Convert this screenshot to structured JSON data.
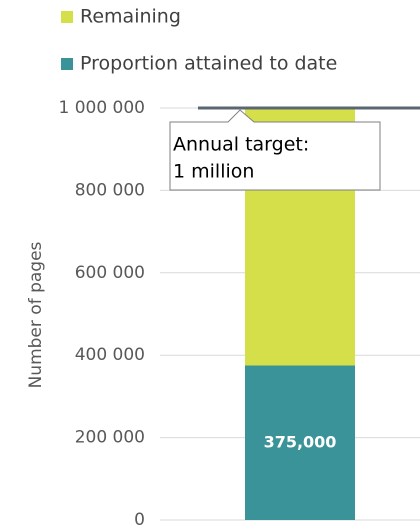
{
  "chart_data": {
    "type": "stacked_bar",
    "categories": [
      null
    ],
    "series": [
      {
        "name": "Proportion attained to date",
        "color": "#3a9399",
        "values": [
          375000
        ],
        "value_labels": [
          "375,000"
        ]
      },
      {
        "name": "Remaining",
        "color": "#d5df4a",
        "values": [
          625000
        ]
      }
    ],
    "y_axis_label": "Number of pages",
    "ylim": [
      0,
      1000000
    ],
    "yticks": [
      0,
      {
        "value": 200000,
        "label": "200 000"
      },
      {
        "value": 400000,
        "label": "400 000"
      },
      {
        "value": 600000,
        "label": "600 000"
      },
      {
        "value": 800000,
        "label": "800 000"
      },
      {
        "value": 1000000,
        "label": "1 000 000"
      }
    ],
    "grid": true,
    "target_line": {
      "value": 1000000,
      "color": "#5b6770"
    },
    "annotation": [
      "Annual target:",
      "1 million"
    ]
  }
}
